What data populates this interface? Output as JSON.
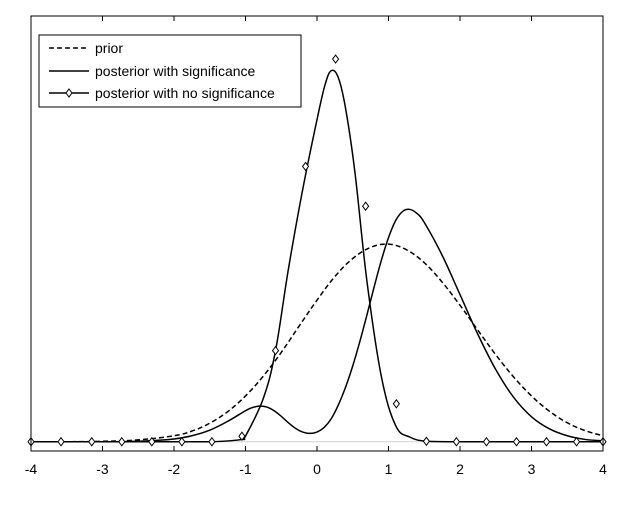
{
  "chart_data": {
    "type": "line",
    "title": "",
    "xlabel": "",
    "ylabel": "",
    "xlim": [
      -4,
      4
    ],
    "ylim": [
      -0.02,
      0.92
    ],
    "grid": false,
    "box": true,
    "y_ticks_shown": false,
    "x_ticks": [
      "-4",
      "-3",
      "-2",
      "-1",
      "0",
      "1",
      "2",
      "3",
      "4"
    ],
    "legend": {
      "location": "top-left",
      "boxed": true
    },
    "series": [
      {
        "name": "prior",
        "style": "dashed",
        "marker": "none",
        "color": "#000000",
        "x": [
          -4,
          -3.5,
          -3,
          -2.5,
          -2,
          -1.75,
          -1.5,
          -1.25,
          -1,
          -0.75,
          -0.5,
          -0.25,
          0,
          0.25,
          0.5,
          0.75,
          1,
          1.25,
          1.5,
          1.75,
          2,
          2.25,
          2.5,
          2.75,
          3,
          3.25,
          3.5,
          3.75,
          4
        ],
        "y": [
          0.0,
          0.0,
          0.001,
          0.004,
          0.013,
          0.023,
          0.04,
          0.065,
          0.099,
          0.142,
          0.193,
          0.25,
          0.306,
          0.357,
          0.396,
          0.42,
          0.427,
          0.415,
          0.387,
          0.345,
          0.295,
          0.241,
          0.188,
          0.14,
          0.099,
          0.066,
          0.041,
          0.024,
          0.013
        ]
      },
      {
        "name": "posterior with significance",
        "style": "solid",
        "marker": "none",
        "color": "#000000",
        "x": [
          -4,
          -3.5,
          -3,
          -2.5,
          -2.25,
          -2,
          -1.75,
          -1.5,
          -1.25,
          -1,
          -0.9,
          -0.8,
          -0.7,
          -0.6,
          -0.5,
          -0.4,
          -0.3,
          -0.2,
          -0.1,
          0,
          0.1,
          0.2,
          0.3,
          0.4,
          0.5,
          0.6,
          0.7,
          0.8,
          0.9,
          1,
          1.1,
          1.2,
          1.3,
          1.4,
          1.5,
          1.75,
          2,
          2.25,
          2.5,
          2.75,
          3,
          3.25,
          3.5,
          3.75,
          4
        ],
        "y": [
          0.0,
          0.0,
          0.0,
          0.001,
          0.003,
          0.006,
          0.013,
          0.025,
          0.044,
          0.067,
          0.074,
          0.077,
          0.075,
          0.067,
          0.055,
          0.041,
          0.029,
          0.021,
          0.018,
          0.021,
          0.031,
          0.05,
          0.08,
          0.118,
          0.164,
          0.217,
          0.275,
          0.335,
          0.392,
          0.441,
          0.478,
          0.498,
          0.502,
          0.493,
          0.474,
          0.403,
          0.318,
          0.232,
          0.156,
          0.096,
          0.054,
          0.028,
          0.013,
          0.005,
          0.002
        ]
      },
      {
        "name": "posterior with no significance",
        "style": "solid",
        "marker": "diamond",
        "color": "#000000",
        "x": [
          -4,
          -3.58,
          -3.15,
          -2.73,
          -2.31,
          -1.89,
          -1.47,
          -1.05,
          -1.0,
          -0.75,
          -0.58,
          -0.4,
          -0.2,
          0,
          0.11,
          0.2,
          0.3,
          0.4,
          0.53,
          0.7,
          0.9,
          1.1,
          1.3,
          1.53,
          1.95,
          2.37,
          2.79,
          3.21,
          3.63,
          4
        ],
        "y": [
          0.0,
          0.0,
          0.0,
          0.0,
          0.0,
          0.0,
          0.0,
          0.005,
          0.012,
          0.094,
          0.197,
          0.373,
          0.545,
          0.696,
          0.77,
          0.802,
          0.786,
          0.72,
          0.583,
          0.345,
          0.141,
          0.035,
          0.01,
          0.001,
          0.0,
          0.0,
          0.0,
          0.0,
          0.0,
          0.0
        ],
        "marker_x": [
          -4,
          -3.58,
          -3.15,
          -2.73,
          -2.31,
          -1.89,
          -1.47,
          -1.05,
          -0.58,
          -0.16,
          0.26,
          0.68,
          1.11,
          1.53,
          1.95,
          2.37,
          2.79,
          3.21,
          3.63,
          4
        ],
        "marker_y": [
          0.0,
          0.0,
          0.0,
          0.0,
          0.0,
          0.0,
          0.0,
          0.012,
          0.197,
          0.595,
          0.827,
          0.509,
          0.082,
          0.001,
          0.0,
          0.0,
          0.0,
          0.0,
          0.0,
          0.0
        ]
      }
    ]
  }
}
